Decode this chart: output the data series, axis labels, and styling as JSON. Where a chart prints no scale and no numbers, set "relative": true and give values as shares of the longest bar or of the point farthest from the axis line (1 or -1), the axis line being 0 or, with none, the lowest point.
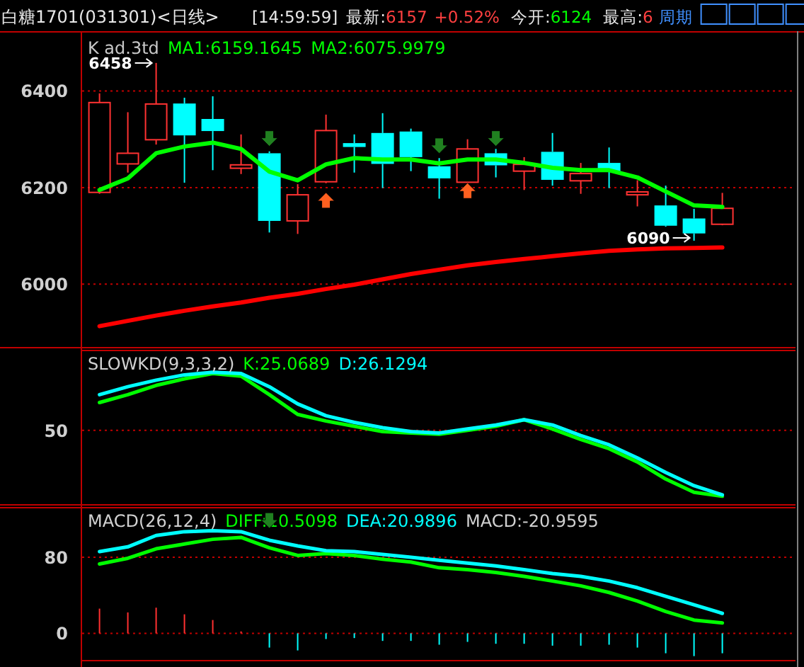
{
  "chart_data": [
    {
      "type": "candlestick",
      "title": "白糖1701(031301)<日线>",
      "subtitle": "K  ad.3td",
      "categories": [
        null,
        null,
        null,
        null,
        null,
        null,
        null,
        null,
        null,
        null,
        null,
        null,
        null,
        null,
        null,
        null,
        null,
        null,
        null,
        null,
        null,
        null,
        null
      ],
      "ohlc": [
        [
          6190,
          6395,
          6187,
          6376
        ],
        [
          6249,
          6356,
          6231,
          6271
        ],
        [
          6299,
          6458,
          6289,
          6373
        ],
        [
          6374,
          6386,
          6210,
          6308
        ],
        [
          6342,
          6389,
          6236,
          6317
        ],
        [
          6240,
          6310,
          6228,
          6247
        ],
        [
          6271,
          6275,
          6107,
          6131
        ],
        [
          6131,
          6207,
          6104,
          6185
        ],
        [
          6212,
          6351,
          6209,
          6318
        ],
        [
          6292,
          6310,
          6231,
          6284
        ],
        [
          6313,
          6354,
          6199,
          6249
        ],
        [
          6316,
          6322,
          6234,
          6263
        ],
        [
          6244,
          6261,
          6177,
          6219
        ],
        [
          6211,
          6300,
          6208,
          6280
        ],
        [
          6271,
          6280,
          6221,
          6246
        ],
        [
          6234,
          6263,
          6195,
          6248
        ],
        [
          6274,
          6313,
          6204,
          6216
        ],
        [
          6214,
          6251,
          6187,
          6229
        ],
        [
          6251,
          6283,
          6199,
          6233
        ],
        [
          6185,
          6215,
          6161,
          6191
        ],
        [
          6163,
          6204,
          6119,
          6121
        ],
        [
          6136,
          6156,
          6090,
          6105
        ],
        [
          6124,
          6189,
          6122,
          6157
        ]
      ],
      "series": [
        {
          "type": "line",
          "color": "#00ff00",
          "values": [
            6195,
            6219,
            6271,
            6285,
            6293,
            6280,
            6233,
            6215,
            6248,
            6261,
            6258,
            6258,
            6250,
            6258,
            6258,
            6251,
            6241,
            6236,
            6236,
            6221,
            6192,
            6163,
            6160
          ]
        },
        {
          "type": "line",
          "color": "#ff0000",
          "values": [
            5913,
            5924,
            5935,
            5945,
            5954,
            5962,
            5972,
            5980,
            5990,
            5999,
            6010,
            6021,
            6030,
            6039,
            6046,
            6052,
            6058,
            6064,
            6069,
            6072,
            6074,
            6075,
            6076
          ]
        }
      ],
      "ylim": [
        5870,
        6515
      ],
      "yticks": [
        6000,
        6200,
        6400
      ],
      "grid": "y",
      "annotations": [
        "[14:59:59]",
        "最新:",
        "6157",
        "+0.52%",
        "今开:",
        "6124",
        "最高:",
        "6",
        "周期",
        "MA1:6159.1645",
        "MA2:6075.9979",
        "6458",
        "6090"
      ]
    },
    {
      "type": "line",
      "title": "SLOWKD(9,3,3,2)",
      "relative": true,
      "categories": [
        null,
        null,
        null,
        null,
        null,
        null,
        null,
        null,
        null,
        null,
        null,
        null,
        null,
        null,
        null,
        null,
        null,
        null,
        null,
        null,
        null,
        null,
        null
      ],
      "series": [
        {
          "name": "K:25.0689",
          "color": "#00ff00",
          "values": [
            0.77,
            0.83,
            0.9,
            0.95,
            0.99,
            0.97,
            0.83,
            0.68,
            0.63,
            0.59,
            0.55,
            0.54,
            0.53,
            0.56,
            0.59,
            0.64,
            0.57,
            0.49,
            0.42,
            0.32,
            0.19,
            0.09,
            0.06
          ]
        },
        {
          "name": "D:26.1294",
          "color": "#00ffff",
          "values": [
            0.83,
            0.89,
            0.94,
            0.98,
            1,
            0.99,
            0.89,
            0.76,
            0.67,
            0.62,
            0.58,
            0.55,
            0.54,
            0.57,
            0.6,
            0.64,
            0.6,
            0.52,
            0.45,
            0.35,
            0.24,
            0.14,
            0.07
          ]
        }
      ],
      "ref_lines": [
        {
          "axis": "y",
          "value": 0.56,
          "color": "#c00000",
          "line_style": "dotted"
        }
      ],
      "annotations": [
        "50"
      ]
    },
    {
      "type": "line",
      "title": "MACD(26,12,4)",
      "categories": [
        null,
        null,
        null,
        null,
        null,
        null,
        null,
        null,
        null,
        null,
        null,
        null,
        null,
        null,
        null,
        null,
        null,
        null,
        null,
        null,
        null,
        null,
        null
      ],
      "series": [
        {
          "name": "DIFF:10.5098",
          "color": "#00ff00",
          "values": [
            73,
            79,
            89,
            94,
            99,
            101,
            90,
            82,
            84,
            82,
            78,
            75,
            69,
            67,
            64,
            60,
            55,
            50,
            43,
            34,
            23,
            14,
            11
          ]
        },
        {
          "name": "DEA:20.9896",
          "color": "#00ffff",
          "values": [
            86,
            91,
            103,
            107,
            108,
            107,
            98,
            92,
            87,
            86,
            83,
            80,
            77,
            74,
            71,
            67,
            63,
            60,
            55,
            48,
            39,
            30,
            21
          ]
        },
        {
          "type": "bar",
          "values": [
            26,
            22,
            27,
            20,
            14,
            2,
            -15,
            -18,
            -6,
            -5,
            -8,
            -8,
            -12,
            -9,
            -11,
            -11,
            -13,
            -13,
            -12,
            -15,
            -21,
            -24,
            -21
          ],
          "colors": [
            "#ff3030",
            "#ff3030",
            "#ff3030",
            "#ff3030",
            "#ff3030",
            "#ff3030",
            "#00ffff",
            "#00ffff",
            "#00ffff",
            "#00ffff",
            "#00ffff",
            "#00ffff",
            "#00ffff",
            "#00ffff",
            "#00ffff",
            "#00ffff",
            "#00ffff",
            "#00ffff",
            "#00ffff",
            "#00ffff",
            "#00ffff",
            "#00ffff",
            "#00ffff"
          ]
        }
      ],
      "ylim": [
        -28,
        133
      ],
      "yticks": [
        0,
        80
      ],
      "grid": "y",
      "annotations": [
        "MACD:-20.9595"
      ]
    }
  ]
}
